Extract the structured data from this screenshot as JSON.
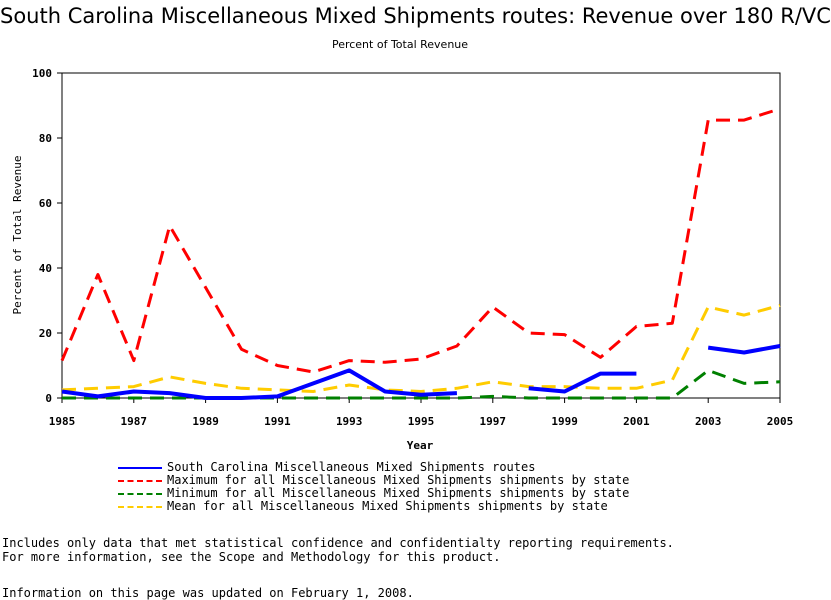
{
  "chart_data": {
    "type": "line",
    "title": "South Carolina Miscellaneous Mixed Shipments routes: Revenue over 180 R/VC",
    "subtitle": "Percent of Total Revenue",
    "xlabel": "Year",
    "ylabel": "Percent of Total Revenue",
    "xlim": [
      1985,
      2005
    ],
    "ylim": [
      0,
      100
    ],
    "x_ticks": [
      1985,
      1987,
      1989,
      1991,
      1993,
      1995,
      1997,
      1999,
      2001,
      2003,
      2005
    ],
    "y_ticks": [
      0,
      20,
      40,
      60,
      80,
      100
    ],
    "x": [
      1985,
      1986,
      1987,
      1988,
      1989,
      1990,
      1991,
      1992,
      1993,
      1994,
      1995,
      1996,
      1997,
      1998,
      1999,
      2000,
      2001,
      2002,
      2003,
      2004,
      2005
    ],
    "grid": false,
    "legend_position": "bottom",
    "series": [
      {
        "name": "South Carolina Miscellaneous Mixed Shipments routes",
        "color": "#0000ff",
        "style": "solid",
        "values": [
          2,
          0.5,
          2,
          1.5,
          0,
          0,
          0.5,
          4.5,
          8.5,
          2,
          1,
          1.5,
          null,
          3,
          2,
          7.5,
          7.5,
          null,
          15.5,
          14,
          16
        ]
      },
      {
        "name": "Maximum for all Miscellaneous Mixed Shipments shipments by state",
        "color": "#ff0000",
        "style": "dashed",
        "values": [
          11.5,
          38,
          11.5,
          53,
          34,
          15,
          10,
          8,
          11.5,
          11,
          12,
          16,
          28,
          20,
          19.5,
          12.5,
          22,
          23,
          85.5,
          85.5,
          89
        ]
      },
      {
        "name": "Minimum for all Miscellaneous Mixed Shipments shipments by state",
        "color": "#008000",
        "style": "dashed",
        "values": [
          0,
          0,
          0,
          0,
          0,
          0,
          0,
          0,
          0,
          0,
          0,
          0,
          0.5,
          0,
          0,
          0,
          0,
          0,
          8.5,
          4.5,
          5
        ]
      },
      {
        "name": "Mean for all Miscellaneous Mixed Shipments shipments by state",
        "color": "#ffcc00",
        "style": "dashed",
        "values": [
          2.5,
          3,
          3.5,
          6.5,
          4.5,
          3,
          2.5,
          2,
          4,
          2.5,
          2,
          3,
          5,
          3.5,
          3.5,
          3,
          3,
          5.5,
          28,
          25.5,
          28.5
        ]
      }
    ]
  },
  "notes": [
    "Includes only data that met statistical confidence and confidentialty reporting requirements.",
    "For more information, see the Scope and Methodology for this product."
  ],
  "updated": "Information on this page was updated on February 1, 2008."
}
